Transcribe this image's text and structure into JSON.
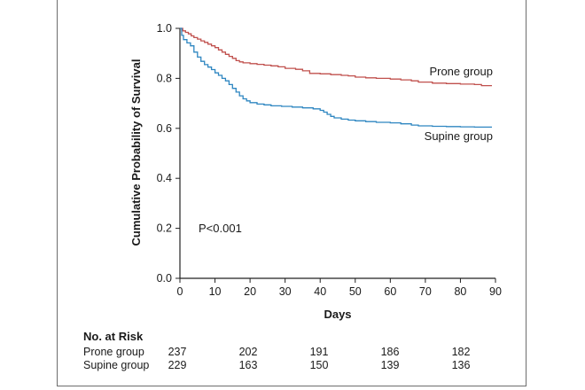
{
  "chart_data": {
    "type": "line",
    "subtype": "kaplan-meier",
    "title": "",
    "xlabel": "Days",
    "ylabel": "Cumulative Probability of Survival",
    "xlim": [
      0,
      90
    ],
    "ylim": [
      0,
      1.0
    ],
    "x_ticks": [
      "0",
      "10",
      "20",
      "30",
      "40",
      "50",
      "60",
      "70",
      "80",
      "90"
    ],
    "y_ticks": [
      "0.0",
      "0.2",
      "0.4",
      "0.6",
      "0.8",
      "1.0"
    ],
    "annotation": "P<0.001",
    "grid": false,
    "series": [
      {
        "name": "Prone group",
        "color": "#c0504d",
        "points": [
          [
            0,
            1.0
          ],
          [
            0.8,
            0.99
          ],
          [
            1.6,
            0.984
          ],
          [
            2.4,
            0.978
          ],
          [
            3.2,
            0.97
          ],
          [
            4,
            0.963
          ],
          [
            5,
            0.957
          ],
          [
            6,
            0.95
          ],
          [
            7,
            0.944
          ],
          [
            8,
            0.937
          ],
          [
            9,
            0.93
          ],
          [
            10,
            0.923
          ],
          [
            11,
            0.914
          ],
          [
            12,
            0.905
          ],
          [
            13,
            0.896
          ],
          [
            14,
            0.888
          ],
          [
            15,
            0.88
          ],
          [
            16,
            0.871
          ],
          [
            17,
            0.866
          ],
          [
            18,
            0.862
          ],
          [
            20,
            0.859
          ],
          [
            22,
            0.856
          ],
          [
            24,
            0.853
          ],
          [
            26,
            0.85
          ],
          [
            28,
            0.846
          ],
          [
            30,
            0.84
          ],
          [
            33,
            0.836
          ],
          [
            35,
            0.83
          ],
          [
            37,
            0.82
          ],
          [
            40,
            0.818
          ],
          [
            43,
            0.815
          ],
          [
            46,
            0.812
          ],
          [
            48,
            0.81
          ],
          [
            50,
            0.805
          ],
          [
            53,
            0.802
          ],
          [
            56,
            0.8
          ],
          [
            60,
            0.797
          ],
          [
            63,
            0.794
          ],
          [
            66,
            0.79
          ],
          [
            68,
            0.785
          ],
          [
            72,
            0.781
          ],
          [
            76,
            0.779
          ],
          [
            80,
            0.777
          ],
          [
            84,
            0.775
          ],
          [
            86,
            0.771
          ],
          [
            89,
            0.771
          ]
        ]
      },
      {
        "name": "Supine group",
        "color": "#2e86c1",
        "points": [
          [
            0,
            1.0
          ],
          [
            0.5,
            0.972
          ],
          [
            1,
            0.955
          ],
          [
            2,
            0.942
          ],
          [
            3,
            0.93
          ],
          [
            4,
            0.905
          ],
          [
            5,
            0.885
          ],
          [
            6,
            0.868
          ],
          [
            7,
            0.855
          ],
          [
            8,
            0.845
          ],
          [
            9,
            0.835
          ],
          [
            10,
            0.822
          ],
          [
            11,
            0.812
          ],
          [
            12,
            0.8
          ],
          [
            13,
            0.79
          ],
          [
            14,
            0.775
          ],
          [
            15,
            0.76
          ],
          [
            16,
            0.745
          ],
          [
            17,
            0.73
          ],
          [
            18,
            0.718
          ],
          [
            19,
            0.71
          ],
          [
            20,
            0.703
          ],
          [
            22,
            0.697
          ],
          [
            24,
            0.694
          ],
          [
            26,
            0.69
          ],
          [
            29,
            0.688
          ],
          [
            32,
            0.685
          ],
          [
            35,
            0.682
          ],
          [
            38,
            0.678
          ],
          [
            40,
            0.672
          ],
          [
            41,
            0.665
          ],
          [
            42,
            0.656
          ],
          [
            43,
            0.648
          ],
          [
            44,
            0.642
          ],
          [
            46,
            0.637
          ],
          [
            48,
            0.633
          ],
          [
            50,
            0.63
          ],
          [
            53,
            0.627
          ],
          [
            56,
            0.624
          ],
          [
            60,
            0.622
          ],
          [
            63,
            0.618
          ],
          [
            66,
            0.613
          ],
          [
            68,
            0.61
          ],
          [
            72,
            0.608
          ],
          [
            76,
            0.607
          ],
          [
            80,
            0.606
          ],
          [
            84,
            0.605
          ],
          [
            89,
            0.605
          ]
        ]
      }
    ],
    "risk_table": {
      "title": "No. at Risk",
      "timepoints": [
        0,
        20,
        40,
        60,
        80
      ],
      "rows": [
        {
          "label": "Prone group",
          "values": [
            "237",
            "202",
            "191",
            "186",
            "182"
          ]
        },
        {
          "label": "Supine group",
          "values": [
            "229",
            "163",
            "150",
            "139",
            "136"
          ]
        }
      ]
    }
  }
}
